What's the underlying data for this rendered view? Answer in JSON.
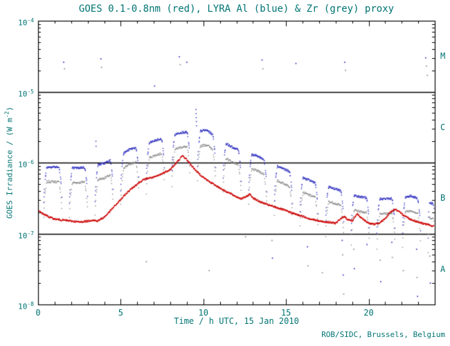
{
  "figure": {
    "title": "GOES 0.1-0.8nm (red), LYRA Al (blue) & Zr (grey) proxy",
    "xlabel": "Time / h UTC, 15 Jan 2010",
    "ylabel_prefix": "GOES Irradiance / (W m",
    "ylabel_exponent": "-2",
    "ylabel_suffix": ")",
    "credit": "ROB/SIDC, Brussels, Belgium",
    "text_color": "#007373",
    "frame_color": "#000000"
  },
  "chart_data": {
    "type": "scatter",
    "title": "GOES 0.1-0.8nm (red), LYRA Al (blue) & Zr (grey) proxy",
    "xlabel": "Time / h UTC, 15 Jan 2010",
    "ylabel": "GOES Irradiance / (W m^-2)",
    "date": "15 Jan 2010",
    "xlim": [
      0,
      24
    ],
    "ylog_lim": [
      -8,
      -4
    ],
    "x_major_ticks": [
      0,
      5,
      10,
      15,
      20
    ],
    "x_tick_labels": [
      "0",
      "5",
      "10",
      "15",
      "20"
    ],
    "y_tick_base": "10",
    "y_tick_exponents": [
      "-8",
      "-7",
      "-6",
      "-5",
      "-4"
    ],
    "hlines": [
      1e-07,
      1e-06,
      1e-05
    ],
    "flare_class_labels": [
      {
        "label": "M",
        "log_mid": -4.5
      },
      {
        "label": "C",
        "log_mid": -5.5
      },
      {
        "label": "B",
        "log_mid": -6.5
      },
      {
        "label": "A",
        "log_mid": -7.5
      }
    ],
    "series": [
      {
        "name": "GOES 0.1-0.8nm",
        "color": "#cc0000",
        "type": "line",
        "anchors": [
          [
            0,
            2.1e-07
          ],
          [
            0.3,
            1.9e-07
          ],
          [
            0.7,
            1.7e-07
          ],
          [
            1,
            1.6e-07
          ],
          [
            1.5,
            1.55e-07
          ],
          [
            2,
            1.5e-07
          ],
          [
            2.5,
            1.45e-07
          ],
          [
            3,
            1.5e-07
          ],
          [
            3.3,
            1.55e-07
          ],
          [
            3.6,
            1.5e-07
          ],
          [
            4,
            1.7e-07
          ],
          [
            4.3,
            2e-07
          ],
          [
            4.6,
            2.4e-07
          ],
          [
            5,
            3e-07
          ],
          [
            5.3,
            3.6e-07
          ],
          [
            5.6,
            4.2e-07
          ],
          [
            6,
            5e-07
          ],
          [
            6.3,
            5.6e-07
          ],
          [
            6.6,
            6e-07
          ],
          [
            7,
            6.2e-07
          ],
          [
            7.3,
            6.6e-07
          ],
          [
            7.6,
            7.2e-07
          ],
          [
            8,
            8e-07
          ],
          [
            8.3,
            9.5e-07
          ],
          [
            8.6,
            1.15e-06
          ],
          [
            8.75,
            1.25e-06
          ],
          [
            9,
            1.1e-06
          ],
          [
            9.3,
            9e-07
          ],
          [
            9.6,
            7.5e-07
          ],
          [
            10,
            6.2e-07
          ],
          [
            10.3,
            5.5e-07
          ],
          [
            10.6,
            5e-07
          ],
          [
            11,
            4.4e-07
          ],
          [
            11.3,
            4e-07
          ],
          [
            11.6,
            3.7e-07
          ],
          [
            12,
            3.3e-07
          ],
          [
            12.3,
            3.1e-07
          ],
          [
            12.6,
            3.3e-07
          ],
          [
            12.8,
            3.6e-07
          ],
          [
            13,
            3.2e-07
          ],
          [
            13.3,
            2.9e-07
          ],
          [
            13.6,
            2.7e-07
          ],
          [
            14,
            2.5e-07
          ],
          [
            14.5,
            2.3e-07
          ],
          [
            15,
            2.1e-07
          ],
          [
            15.5,
            1.9e-07
          ],
          [
            16,
            1.75e-07
          ],
          [
            16.5,
            1.6e-07
          ],
          [
            17,
            1.5e-07
          ],
          [
            17.5,
            1.45e-07
          ],
          [
            18,
            1.4e-07
          ],
          [
            18.3,
            1.6e-07
          ],
          [
            18.5,
            1.75e-07
          ],
          [
            18.7,
            1.6e-07
          ],
          [
            19,
            1.5e-07
          ],
          [
            19.3,
            1.9e-07
          ],
          [
            19.5,
            1.7e-07
          ],
          [
            20,
            1.4e-07
          ],
          [
            20.3,
            1.35e-07
          ],
          [
            20.6,
            1.4e-07
          ],
          [
            21,
            1.6e-07
          ],
          [
            21.3,
            2e-07
          ],
          [
            21.6,
            2.2e-07
          ],
          [
            22,
            1.9e-07
          ],
          [
            22.5,
            1.6e-07
          ],
          [
            23,
            1.45e-07
          ],
          [
            23.5,
            1.35e-07
          ],
          [
            24,
            1.25e-07
          ]
        ]
      },
      {
        "name": "LYRA Al proxy",
        "color": "#3030c0",
        "type": "segmented",
        "scale": 1.0
      },
      {
        "name": "LYRA Zr proxy",
        "color": "#8a8a8a",
        "type": "segmented",
        "scale": 0.62
      }
    ],
    "segments": [
      [
        0.35,
        1.45
      ],
      [
        1.9,
        3.0
      ],
      [
        3.45,
        4.55
      ],
      [
        5.0,
        6.1
      ],
      [
        6.55,
        7.65
      ],
      [
        8.1,
        9.2
      ],
      [
        9.65,
        10.75
      ],
      [
        11.2,
        12.3
      ],
      [
        12.75,
        13.85
      ],
      [
        14.3,
        15.4
      ],
      [
        15.85,
        16.95
      ],
      [
        17.4,
        18.5
      ],
      [
        18.95,
        20.05
      ],
      [
        20.5,
        21.6
      ],
      [
        22.05,
        23.15
      ],
      [
        23.6,
        24.0
      ]
    ],
    "segment_envelope": [
      [
        0.0,
        8.5e-07
      ],
      [
        0.9,
        8.5e-07
      ],
      [
        2.45,
        8.2e-07
      ],
      [
        4.0,
        9.5e-07
      ],
      [
        5.55,
        1.5e-06
      ],
      [
        7.1,
        2e-06
      ],
      [
        8.65,
        2.6e-06
      ],
      [
        10.2,
        2.8e-06
      ],
      [
        11.75,
        1.6e-06
      ],
      [
        13.3,
        1.2e-06
      ],
      [
        14.85,
        8e-07
      ],
      [
        16.4,
        5.5e-07
      ],
      [
        17.95,
        4.2e-07
      ],
      [
        19.5,
        3.2e-07
      ],
      [
        21.05,
        3e-07
      ],
      [
        22.6,
        3.3e-07
      ],
      [
        24.0,
        2.5e-07
      ]
    ],
    "spikes": [
      [
        9.55,
        5.6e-06,
        "al"
      ],
      [
        9.56,
        4.9e-06,
        "al"
      ],
      [
        9.57,
        4.3e-06,
        "al"
      ],
      [
        9.58,
        3.8e-06,
        "al"
      ],
      [
        9.59,
        3.3e-06,
        "al"
      ],
      [
        3.5,
        2e-06,
        "al"
      ],
      [
        3.51,
        1.7e-06,
        "al"
      ]
    ],
    "outliers_high": [
      [
        1.55,
        2.6e-05,
        "al"
      ],
      [
        1.6,
        2.1e-05,
        "zr"
      ],
      [
        3.8,
        2.9e-05,
        "al"
      ],
      [
        3.84,
        2.2e-05,
        "zr"
      ],
      [
        7.05,
        1.2e-05,
        "al"
      ],
      [
        8.55,
        3.1e-05,
        "al"
      ],
      [
        8.6,
        2.4e-05,
        "zr"
      ],
      [
        9.0,
        2.6e-05,
        "al"
      ],
      [
        13.55,
        2.8e-05,
        "al"
      ],
      [
        13.6,
        2.1e-05,
        "zr"
      ],
      [
        15.6,
        2.5e-05,
        "al"
      ],
      [
        18.55,
        2.6e-05,
        "al"
      ],
      [
        18.6,
        2e-05,
        "zr"
      ],
      [
        23.45,
        3e-05,
        "al"
      ],
      [
        23.5,
        2.3e-05,
        "zr"
      ],
      [
        23.55,
        1.7e-05,
        "zr"
      ]
    ],
    "outliers_low": [
      [
        6.55,
        4e-08,
        "zr"
      ],
      [
        10.35,
        3e-08,
        "zr"
      ],
      [
        12.55,
        9e-08,
        "zr"
      ],
      [
        14.15,
        8e-08,
        "zr"
      ],
      [
        14.18,
        4.5e-08,
        "al"
      ],
      [
        16.3,
        6.5e-08,
        "al"
      ],
      [
        16.33,
        3.5e-08,
        "zr"
      ],
      [
        17.2,
        2.8e-08,
        "zr"
      ],
      [
        18.4,
        8e-08,
        "al"
      ],
      [
        18.43,
        5e-08,
        "zr"
      ],
      [
        18.46,
        2.6e-08,
        "al"
      ],
      [
        18.49,
        1.4e-08,
        "zr"
      ],
      [
        19.1,
        6e-08,
        "zr"
      ],
      [
        19.13,
        3.2e-08,
        "al"
      ],
      [
        19.9,
        7e-08,
        "al"
      ],
      [
        20.7,
        4.2e-08,
        "zr"
      ],
      [
        20.73,
        2.1e-08,
        "al"
      ],
      [
        21.4,
        7.5e-08,
        "al"
      ],
      [
        21.43,
        4.6e-08,
        "zr"
      ],
      [
        22.1,
        3e-08,
        "zr"
      ],
      [
        22.9,
        6e-08,
        "al"
      ],
      [
        22.93,
        2.4e-08,
        "zr"
      ],
      [
        22.96,
        1.3e-08,
        "al"
      ],
      [
        23.7,
        4.8e-08,
        "zr"
      ],
      [
        23.73,
        2e-08,
        "al"
      ]
    ]
  }
}
